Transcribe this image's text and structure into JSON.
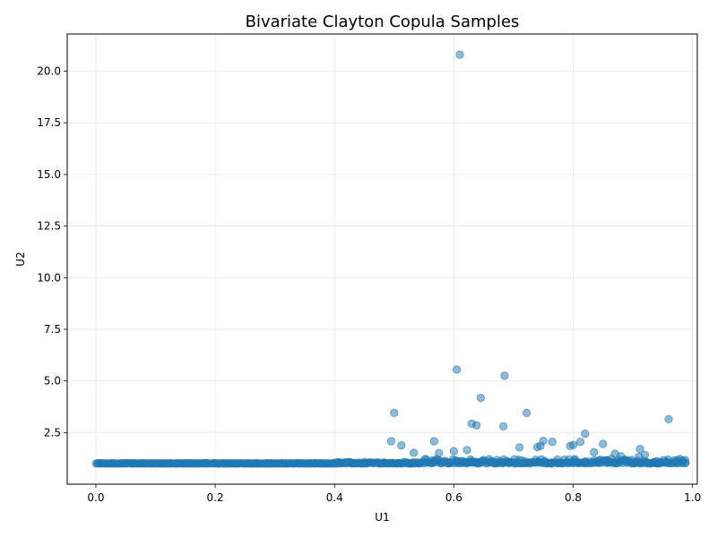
{
  "chart_data": {
    "type": "scatter",
    "title": "Bivariate Clayton Copula Samples",
    "xlabel": "U1",
    "ylabel": "U2",
    "xlim": [
      -0.048,
      1.008
    ],
    "ylim": [
      0.0,
      21.8
    ],
    "xticks": [
      "0.0",
      "0.2",
      "0.4",
      "0.6",
      "0.8",
      "1.0"
    ],
    "yticks": [
      "2.5",
      "5.0",
      "7.5",
      "10.0",
      "12.5",
      "15.0",
      "17.5",
      "20.0"
    ],
    "grid": true,
    "marker_color": "#1f77b4",
    "marker_alpha": 0.5,
    "outliers": [
      [
        0.61,
        20.8
      ],
      [
        0.605,
        5.55
      ],
      [
        0.685,
        5.25
      ],
      [
        0.645,
        4.18
      ],
      [
        0.5,
        3.45
      ],
      [
        0.722,
        3.45
      ],
      [
        0.96,
        3.15
      ],
      [
        0.63,
        2.93
      ],
      [
        0.638,
        2.85
      ],
      [
        0.683,
        2.8
      ],
      [
        0.82,
        2.45
      ],
      [
        0.495,
        2.08
      ],
      [
        0.567,
        2.08
      ],
      [
        0.75,
        2.1
      ],
      [
        0.765,
        2.05
      ],
      [
        0.85,
        1.95
      ],
      [
        0.512,
        1.88
      ],
      [
        0.795,
        1.85
      ],
      [
        0.745,
        1.85
      ],
      [
        0.74,
        1.8
      ],
      [
        0.71,
        1.78
      ],
      [
        0.912,
        1.7
      ],
      [
        0.8,
        1.9
      ],
      [
        0.812,
        2.05
      ],
      [
        0.622,
        1.65
      ],
      [
        0.6,
        1.6
      ],
      [
        0.575,
        1.5
      ],
      [
        0.533,
        1.52
      ],
      [
        0.92,
        1.42
      ],
      [
        0.835,
        1.55
      ],
      [
        0.87,
        1.48
      ],
      [
        0.88,
        1.35
      ],
      [
        0.91,
        1.32
      ],
      [
        0.94,
        1.12
      ],
      [
        0.955,
        1.05
      ],
      [
        0.858,
        1.15
      ],
      [
        0.84,
        1.08
      ],
      [
        0.925,
        1.0
      ]
    ],
    "band": {
      "n": 540,
      "x_range": [
        0.0,
        0.99
      ],
      "y_base": 1.0
    }
  }
}
